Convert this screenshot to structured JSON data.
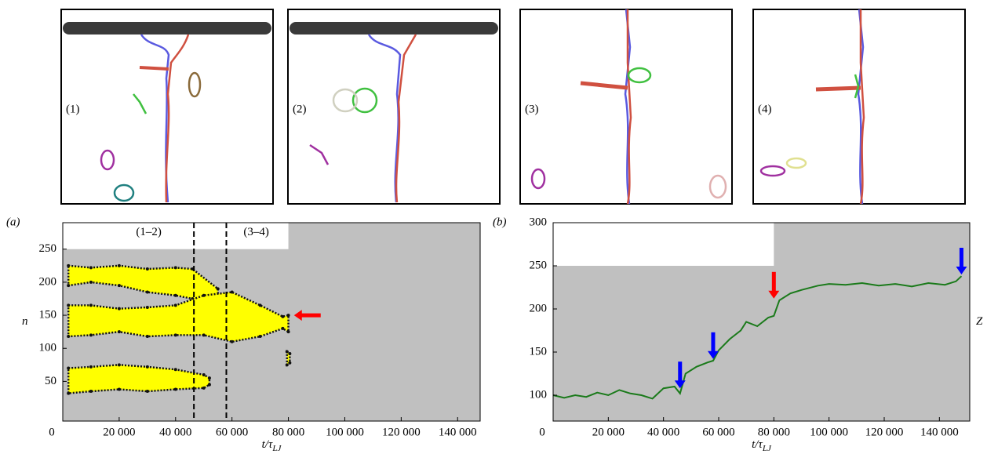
{
  "snapshots": [
    "(1)",
    "(2)",
    "(3)",
    "(4)"
  ],
  "chart_data": [
    {
      "type": "band",
      "panel": "(a)",
      "ylabel": "n",
      "xlabel": "t/τ",
      "xlabel_sub": "LJ",
      "xlim": [
        0,
        148000
      ],
      "ylim": [
        -10,
        290
      ],
      "xticks": [
        0,
        {
          "value": 20000,
          "label": "20 000"
        },
        {
          "value": 40000,
          "label": "40 000"
        },
        {
          "value": 60000,
          "label": "60 000"
        },
        {
          "value": 80000,
          "label": "80 000"
        },
        {
          "value": 100000,
          "label": "100 000"
        },
        {
          "value": 120000,
          "label": "120 000"
        },
        {
          "value": 140000,
          "label": "140 000"
        }
      ],
      "yticks": [
        50,
        100,
        150,
        200,
        250
      ],
      "background": "#c0c0c0",
      "white_region": {
        "x": [
          0,
          80000
        ],
        "y": [
          250,
          290
        ]
      },
      "vlines": [
        46500,
        58000
      ],
      "annotations": [
        {
          "text": "(1–2)",
          "x": 30500,
          "y": 275
        },
        {
          "text": "(3–4)",
          "x": 68600,
          "y": 275
        }
      ],
      "color": "#ffff00",
      "bands": [
        {
          "x": [
            2000,
            10000,
            20000,
            30000,
            40000,
            46000,
            55000
          ],
          "lower": [
            195,
            200,
            195,
            185,
            180,
            175,
            170
          ],
          "upper": [
            225,
            222,
            225,
            220,
            222,
            220,
            190
          ]
        },
        {
          "x": [
            2000,
            10000,
            20000,
            30000,
            40000,
            50000,
            60000,
            70000,
            78000,
            80000
          ],
          "lower": [
            118,
            120,
            125,
            118,
            120,
            120,
            110,
            118,
            130,
            125
          ],
          "upper": [
            165,
            165,
            160,
            162,
            165,
            180,
            185,
            165,
            148,
            150
          ]
        },
        {
          "x": [
            2000,
            10000,
            20000,
            30000,
            40000,
            50000,
            52000
          ],
          "lower": [
            32,
            35,
            38,
            35,
            38,
            40,
            45
          ],
          "upper": [
            70,
            72,
            75,
            72,
            68,
            60,
            55
          ]
        },
        {
          "x": [
            79500,
            80500
          ],
          "lower": [
            75,
            78
          ],
          "upper": [
            95,
            92
          ]
        }
      ],
      "arrows": [
        {
          "x": 82000,
          "y": 150,
          "color": "#ff0000",
          "direction": "left"
        }
      ]
    },
    {
      "type": "line",
      "panel": "(b)",
      "xlabel": "t/τ",
      "xlabel_sub": "LJ",
      "series_label": "Z",
      "xlim": [
        0,
        151000
      ],
      "ylim": [
        70,
        300
      ],
      "xticks": [
        0,
        {
          "value": 20000,
          "label": "20 000"
        },
        {
          "value": 40000,
          "label": "40 000"
        },
        {
          "value": 60000,
          "label": "60 000"
        },
        {
          "value": 80000,
          "label": "80 000"
        },
        {
          "value": 100000,
          "label": "100 000"
        },
        {
          "value": 120000,
          "label": "120 000"
        },
        {
          "value": 140000,
          "label": "140 000"
        }
      ],
      "yticks": [
        100,
        150,
        200,
        250,
        300
      ],
      "background": "#c0c0c0",
      "white_region": {
        "x": [
          0,
          80000
        ],
        "y": [
          250,
          300
        ]
      },
      "color": "#1a7a1a",
      "x": [
        0,
        4000,
        8000,
        12000,
        16000,
        20000,
        24000,
        28000,
        32000,
        36000,
        40000,
        44000,
        46000,
        48000,
        52000,
        56000,
        58000,
        60000,
        64000,
        68000,
        70000,
        74000,
        78000,
        80000,
        82000,
        86000,
        90000,
        96000,
        100000,
        106000,
        112000,
        118000,
        124000,
        130000,
        136000,
        142000,
        146000,
        148000
      ],
      "values": [
        100,
        97,
        100,
        98,
        103,
        100,
        106,
        102,
        100,
        96,
        108,
        110,
        102,
        125,
        133,
        138,
        140,
        152,
        165,
        175,
        185,
        180,
        190,
        192,
        210,
        218,
        222,
        227,
        229,
        228,
        230,
        227,
        229,
        226,
        230,
        228,
        232,
        238
      ],
      "arrows": [
        {
          "x": 46000,
          "y": 108,
          "color": "#0000ff",
          "direction": "down"
        },
        {
          "x": 58000,
          "y": 142,
          "color": "#0000ff",
          "direction": "down"
        },
        {
          "x": 80000,
          "y": 212,
          "color": "#ff0000",
          "direction": "down"
        },
        {
          "x": 148000,
          "y": 240,
          "color": "#0000ff",
          "direction": "down"
        }
      ]
    }
  ]
}
